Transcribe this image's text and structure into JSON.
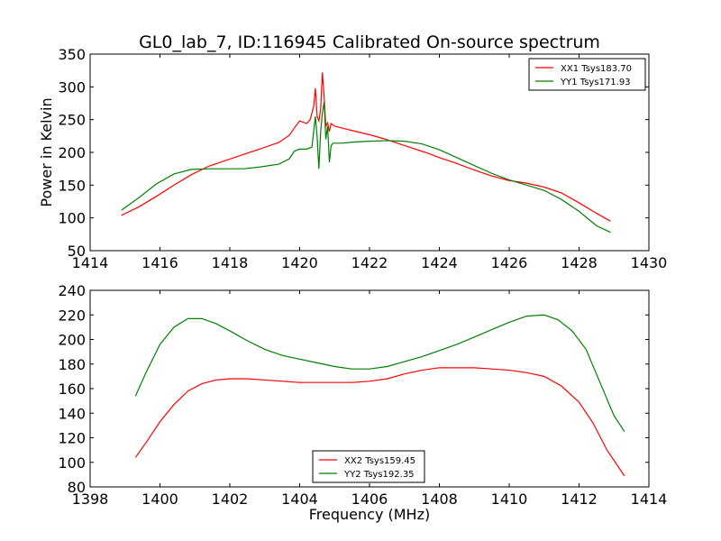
{
  "title": "GL0_lab_7, ID:116945 Calibrated On-source spectrum",
  "chart_data": [
    {
      "type": "line",
      "title": "GL0_lab_7, ID:116945 Calibrated On-source spectrum",
      "xlabel": "",
      "ylabel": "Power in Kelvin",
      "xlim": [
        1414,
        1430
      ],
      "ylim": [
        50,
        350
      ],
      "xticks": [
        1414,
        1416,
        1418,
        1420,
        1422,
        1424,
        1426,
        1428,
        1430
      ],
      "yticks": [
        50,
        100,
        150,
        200,
        250,
        300,
        350
      ],
      "legend_position": "upper right",
      "grid": false,
      "series": [
        {
          "name": "XX1 Tsys183.70",
          "color": "#ff0000",
          "points": [
            [
              1414.9,
              104
            ],
            [
              1415.4,
              117
            ],
            [
              1415.9,
              133
            ],
            [
              1416.4,
              150
            ],
            [
              1416.9,
              166
            ],
            [
              1417.4,
              179
            ],
            [
              1417.9,
              188
            ],
            [
              1418.4,
              197
            ],
            [
              1418.9,
              206
            ],
            [
              1419.4,
              215
            ],
            [
              1419.7,
              226
            ],
            [
              1419.9,
              241
            ],
            [
              1420.0,
              248
            ],
            [
              1420.1,
              246
            ],
            [
              1420.2,
              244
            ],
            [
              1420.3,
              250
            ],
            [
              1420.4,
              270
            ],
            [
              1420.45,
              298
            ],
            [
              1420.5,
              255
            ],
            [
              1420.55,
              248
            ],
            [
              1420.6,
              265
            ],
            [
              1420.65,
              322
            ],
            [
              1420.7,
              285
            ],
            [
              1420.75,
              240
            ],
            [
              1420.8,
              245
            ],
            [
              1420.85,
              232
            ],
            [
              1420.9,
              244
            ],
            [
              1421.0,
              240
            ],
            [
              1421.3,
              236
            ],
            [
              1421.6,
              232
            ],
            [
              1422.0,
              227
            ],
            [
              1422.4,
              221
            ],
            [
              1422.8,
              214
            ],
            [
              1423.2,
              207
            ],
            [
              1423.6,
              200
            ],
            [
              1424.0,
              192
            ],
            [
              1424.5,
              183
            ],
            [
              1425.0,
              173
            ],
            [
              1425.5,
              164
            ],
            [
              1426.0,
              157
            ],
            [
              1426.5,
              153
            ],
            [
              1427.0,
              147
            ],
            [
              1427.5,
              138
            ],
            [
              1428.0,
              123
            ],
            [
              1428.5,
              107
            ],
            [
              1428.9,
              95
            ]
          ]
        },
        {
          "name": "YY1 Tsys171.93",
          "color": "#008000",
          "points": [
            [
              1414.9,
              112
            ],
            [
              1415.4,
              131
            ],
            [
              1415.9,
              152
            ],
            [
              1416.4,
              167
            ],
            [
              1416.9,
              174
            ],
            [
              1417.4,
              175
            ],
            [
              1417.9,
              175
            ],
            [
              1418.4,
              175
            ],
            [
              1418.9,
              178
            ],
            [
              1419.4,
              182
            ],
            [
              1419.7,
              190
            ],
            [
              1419.85,
              202
            ],
            [
              1420.0,
              205
            ],
            [
              1420.2,
              205
            ],
            [
              1420.35,
              208
            ],
            [
              1420.45,
              255
            ],
            [
              1420.5,
              224
            ],
            [
              1420.55,
              175
            ],
            [
              1420.6,
              230
            ],
            [
              1420.65,
              260
            ],
            [
              1420.7,
              277
            ],
            [
              1420.75,
              220
            ],
            [
              1420.8,
              240
            ],
            [
              1420.85,
              185
            ],
            [
              1420.9,
              210
            ],
            [
              1420.95,
              214
            ],
            [
              1421.2,
              214
            ],
            [
              1421.6,
              216
            ],
            [
              1422.0,
              217
            ],
            [
              1422.5,
              218
            ],
            [
              1423.0,
              217
            ],
            [
              1423.5,
              213
            ],
            [
              1424.0,
              204
            ],
            [
              1424.5,
              192
            ],
            [
              1425.0,
              180
            ],
            [
              1425.5,
              168
            ],
            [
              1426.0,
              158
            ],
            [
              1426.5,
              150
            ],
            [
              1427.0,
              142
            ],
            [
              1427.5,
              128
            ],
            [
              1428.0,
              110
            ],
            [
              1428.5,
              88
            ],
            [
              1428.9,
              78
            ]
          ]
        }
      ]
    },
    {
      "type": "line",
      "title": "",
      "xlabel": "Frequency (MHz)",
      "ylabel": "",
      "xlim": [
        1398,
        1414
      ],
      "ylim": [
        80,
        240
      ],
      "xticks": [
        1398,
        1400,
        1402,
        1404,
        1406,
        1408,
        1410,
        1412,
        1414
      ],
      "yticks": [
        80,
        100,
        120,
        140,
        160,
        180,
        200,
        220,
        240
      ],
      "legend_position": "lower center",
      "grid": false,
      "series": [
        {
          "name": "XX2 Tsys159.45",
          "color": "#ff0000",
          "points": [
            [
              1399.3,
              104
            ],
            [
              1399.6,
              116
            ],
            [
              1400.0,
              133
            ],
            [
              1400.4,
              147
            ],
            [
              1400.8,
              158
            ],
            [
              1401.2,
              164
            ],
            [
              1401.6,
              167
            ],
            [
              1402.0,
              168
            ],
            [
              1402.5,
              168
            ],
            [
              1403.0,
              167
            ],
            [
              1403.5,
              166
            ],
            [
              1404.0,
              165
            ],
            [
              1404.5,
              165
            ],
            [
              1405.0,
              165
            ],
            [
              1405.5,
              165
            ],
            [
              1406.0,
              166
            ],
            [
              1406.5,
              168
            ],
            [
              1407.0,
              172
            ],
            [
              1407.5,
              175
            ],
            [
              1408.0,
              177
            ],
            [
              1408.5,
              177
            ],
            [
              1409.0,
              177
            ],
            [
              1409.5,
              176
            ],
            [
              1410.0,
              175
            ],
            [
              1410.5,
              173
            ],
            [
              1411.0,
              170
            ],
            [
              1411.5,
              162
            ],
            [
              1412.0,
              149
            ],
            [
              1412.4,
              132
            ],
            [
              1412.8,
              110
            ],
            [
              1413.3,
              89
            ]
          ]
        },
        {
          "name": "YY2 Tsys192.35",
          "color": "#008000",
          "points": [
            [
              1399.3,
              154
            ],
            [
              1399.6,
              173
            ],
            [
              1400.0,
              196
            ],
            [
              1400.4,
              210
            ],
            [
              1400.8,
              217
            ],
            [
              1401.2,
              217
            ],
            [
              1401.6,
              213
            ],
            [
              1402.0,
              207
            ],
            [
              1402.5,
              199
            ],
            [
              1403.0,
              192
            ],
            [
              1403.5,
              187
            ],
            [
              1404.0,
              184
            ],
            [
              1404.5,
              181
            ],
            [
              1405.0,
              178
            ],
            [
              1405.5,
              176
            ],
            [
              1406.0,
              176
            ],
            [
              1406.5,
              178
            ],
            [
              1407.0,
              182
            ],
            [
              1407.5,
              186
            ],
            [
              1408.0,
              191
            ],
            [
              1408.5,
              196
            ],
            [
              1409.0,
              202
            ],
            [
              1409.5,
              208
            ],
            [
              1410.0,
              214
            ],
            [
              1410.5,
              219
            ],
            [
              1411.0,
              220
            ],
            [
              1411.4,
              216
            ],
            [
              1411.8,
              207
            ],
            [
              1412.2,
              192
            ],
            [
              1412.6,
              165
            ],
            [
              1413.0,
              138
            ],
            [
              1413.3,
              125
            ]
          ]
        }
      ]
    }
  ]
}
